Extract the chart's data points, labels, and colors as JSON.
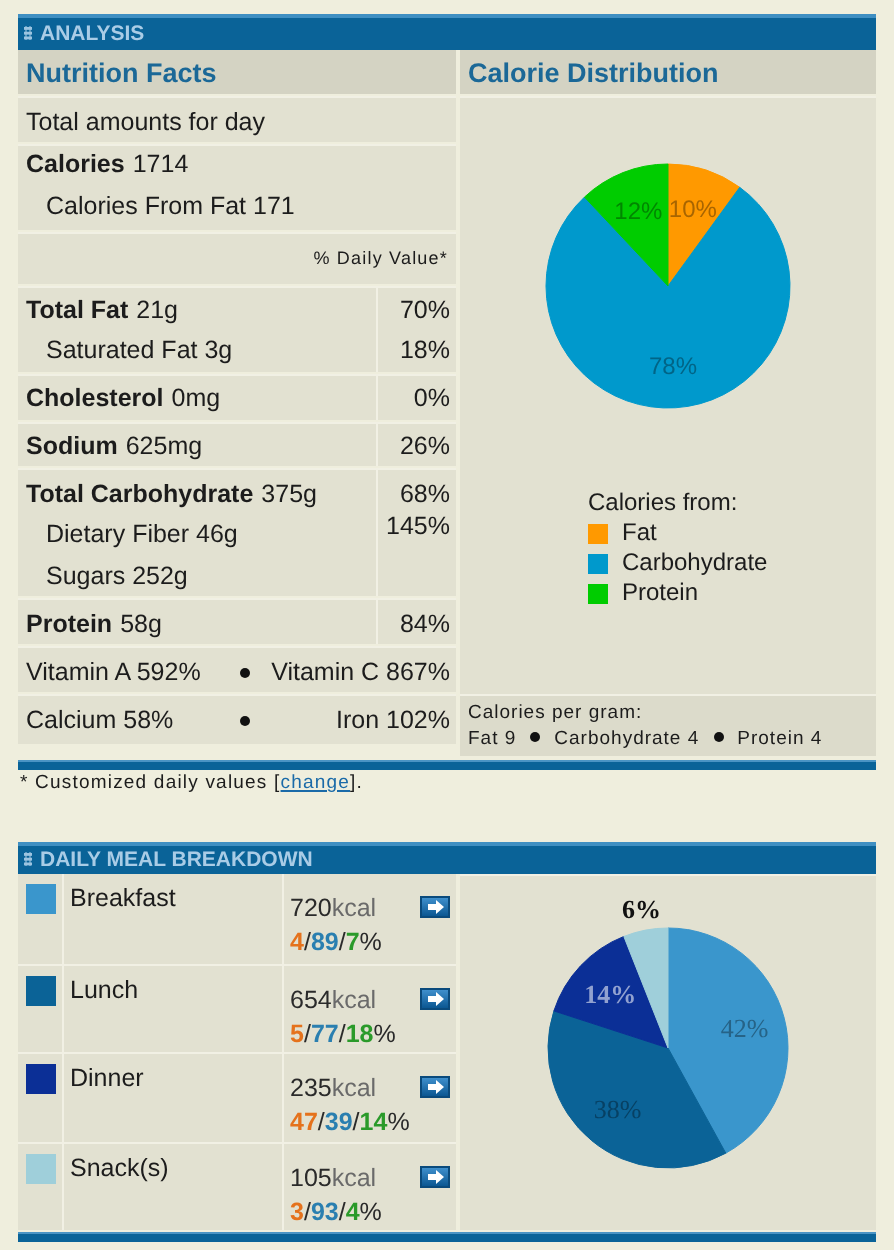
{
  "chart_data": [
    {
      "type": "other",
      "title": "Nutrition Facts",
      "subtitle": "ANALYSIS",
      "annotations": [
        "Total amounts for day",
        "Calories",
        "1714",
        "Calories From Fat 171",
        "% Daily Value*",
        "Total Fat",
        "21g",
        "70%",
        "Saturated Fat 3g",
        "18%",
        "Cholesterol",
        "0mg",
        "0%",
        "Sodium",
        "625mg",
        "26%",
        "Total Carbohydrate",
        "375g",
        "68%",
        "Dietary Fiber 46g",
        "145%",
        "Sugars 252g",
        "Protein",
        "58g",
        "84%",
        "Vitamin A 592%",
        "Vitamin C 867%",
        "Calcium 58%",
        "Iron 102%",
        "* Customized daily values [",
        "change",
        "]."
      ]
    },
    {
      "type": "pie",
      "title": "Calorie Distribution",
      "categories": [
        "Fat",
        "Carbohydrate",
        "Protein"
      ],
      "values": [
        10,
        78,
        12
      ],
      "colors": [
        "#ff9900",
        "#0099cc",
        "#00cc00"
      ],
      "value_labels": [
        "10%",
        "78%",
        "12%"
      ],
      "legend": "bottom",
      "legend_title": "Calories from:",
      "annotations": [
        "Calories per gram:",
        "Fat 9",
        "Carbohydrate 4",
        "Protein 4"
      ]
    },
    {
      "type": "pie",
      "title": "DAILY MEAL BREAKDOWN",
      "categories": [
        "Breakfast",
        "Lunch",
        "Dinner",
        "Snack(s)"
      ],
      "values": [
        42,
        38,
        14,
        6
      ],
      "colors": [
        "#3a96cc",
        "#0b6397",
        "#0b2f96",
        "#9fcfda"
      ],
      "value_labels": [
        "42%",
        "38%",
        "14%",
        "6%"
      ],
      "legend": "left",
      "annotations": [
        "720kcal",
        "4/89/7%",
        "654kcal",
        "5/77/18%",
        "235kcal",
        "47/39/14%",
        "105kcal",
        "3/93/4%"
      ]
    }
  ]
}
